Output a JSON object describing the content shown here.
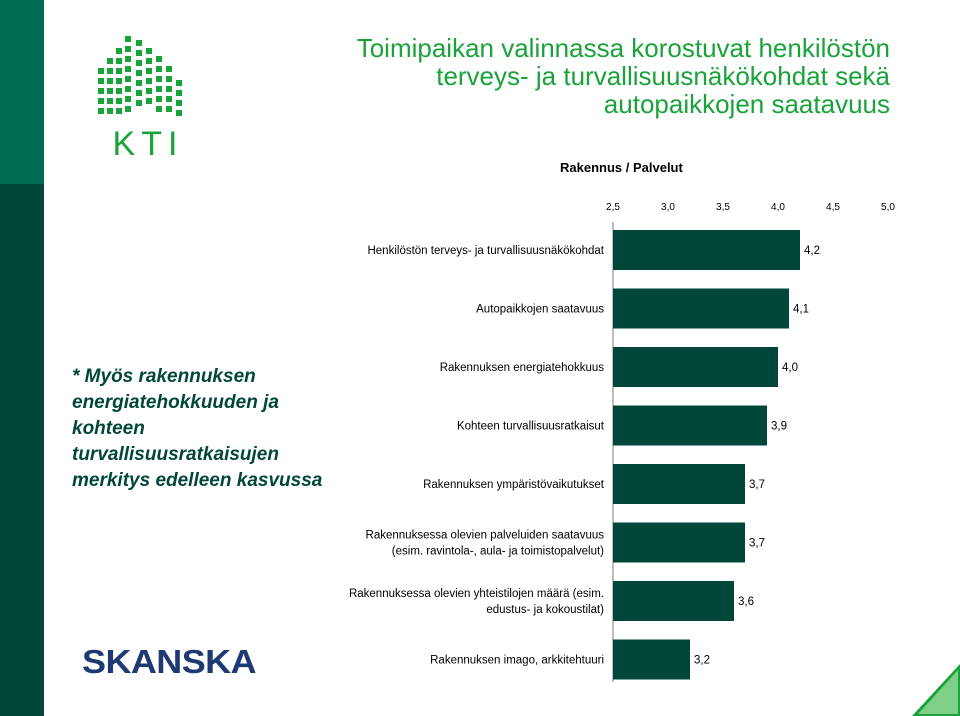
{
  "header": {
    "title_lines": [
      "Toimipaikan valinnassa korostuvat henkilöstön",
      "terveys- ja turvallisuusnäkökohdat sekä",
      "autopaikkojen saatavuus"
    ],
    "logo_text": "KTI"
  },
  "note": {
    "lines": [
      "* Myös rakennuksen",
      "energiatehokkuuden ja",
      "kohteen",
      "turvallisuusratkaisujen",
      "merkitys edelleen kasvussa"
    ]
  },
  "footer": {
    "brand": "SKANSKA"
  },
  "colors": {
    "bar": "#00473a",
    "title": "#1aa33a",
    "sidebar_top": "#006b50",
    "sidebar_bottom": "#00473a",
    "brand": "#1f3a73"
  },
  "chart_data": {
    "type": "bar",
    "orientation": "horizontal",
    "title": "Rakennus / Palvelut",
    "xlim": [
      2.5,
      5.0
    ],
    "ticks": [
      "2,5",
      "3,0",
      "3,5",
      "4,0",
      "4,5",
      "5,0"
    ],
    "tick_values": [
      2.5,
      3.0,
      3.5,
      4.0,
      4.5,
      5.0
    ],
    "categories": [
      [
        "Henkilöstön terveys- ja turvallisuusnäkökohdat"
      ],
      [
        "Autopaikkojen saatavuus"
      ],
      [
        "Rakennuksen energiatehokkuus"
      ],
      [
        "Kohteen turvallisuusratkaisut"
      ],
      [
        "Rakennuksen ympäristövaikutukset"
      ],
      [
        "Rakennuksessa olevien palveluiden saatavuus",
        "(esim. ravintola-, aula- ja toimistopalvelut)"
      ],
      [
        "Rakennuksessa olevien yhteistilojen määrä (esim.",
        "edustus- ja kokoustilat)"
      ],
      [
        "Rakennuksen imago, arkkitehtuuri"
      ]
    ],
    "values": [
      4.2,
      4.1,
      4.0,
      3.9,
      3.7,
      3.7,
      3.6,
      3.2
    ],
    "value_labels": [
      "4,2",
      "4,1",
      "4,0",
      "3,9",
      "3,7",
      "3,7",
      "3,6",
      "3,2"
    ]
  }
}
